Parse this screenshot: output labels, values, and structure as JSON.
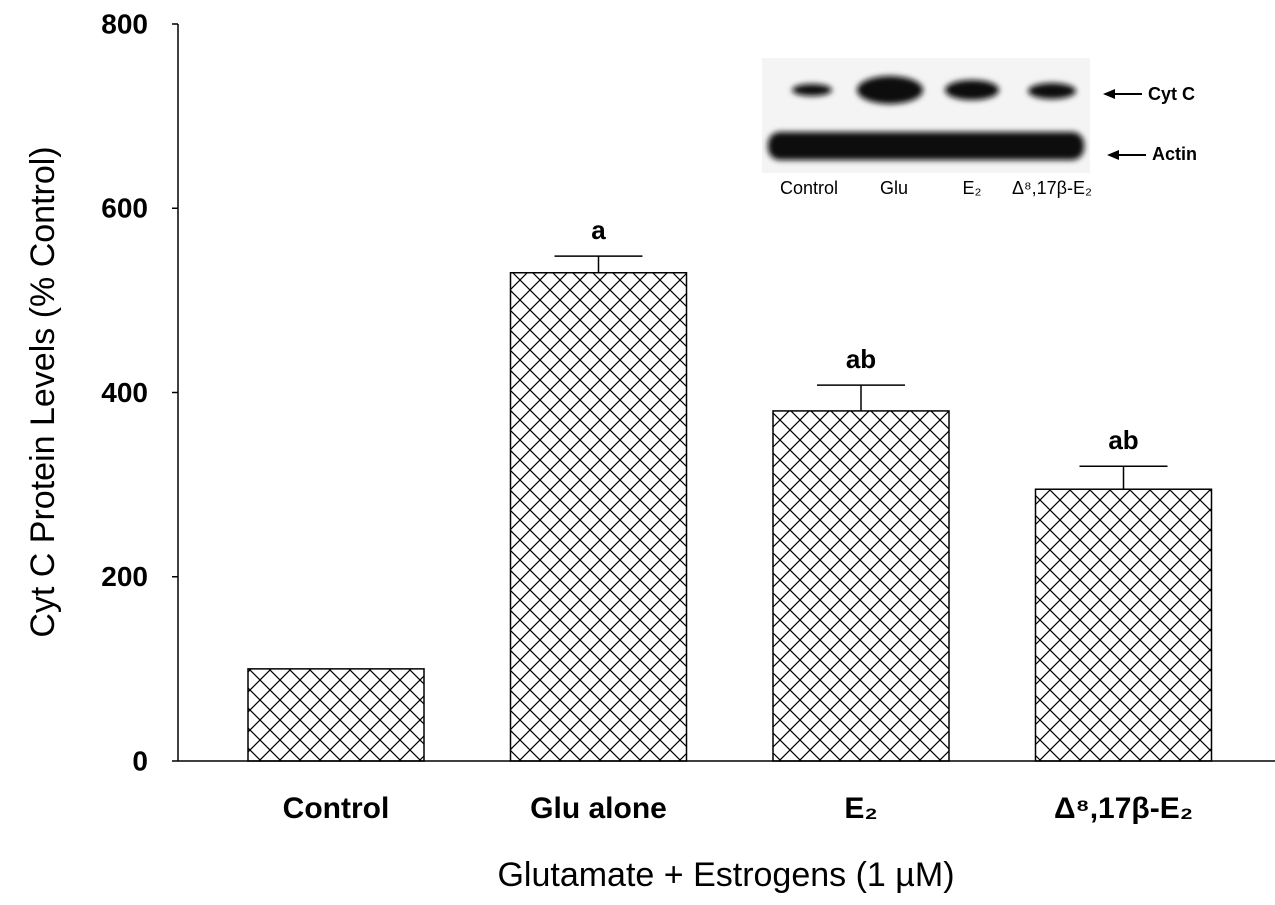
{
  "chart_data": {
    "type": "bar",
    "y_label": "Cyt C Protein Levels (% Control)",
    "x_label": "Glutamate + Estrogens (1 µM)",
    "categories": [
      "Control",
      "Glu alone",
      "E₂",
      "Δ⁸,17β-E₂"
    ],
    "values": [
      100,
      530,
      380,
      295
    ],
    "errors": [
      null,
      18,
      28,
      25
    ],
    "letters": [
      null,
      "a",
      "ab",
      "ab"
    ],
    "color": "#000000",
    "hatch": "crosshatch",
    "ylim": [
      0,
      800
    ],
    "yticks": [
      0,
      200,
      400,
      600,
      800
    ],
    "grid": false,
    "inset": {
      "lanes": [
        "Control",
        "Glu",
        "E₂",
        "Δ⁸,17β-E₂"
      ],
      "bands": [
        "Cyt C",
        "Actin"
      ]
    }
  }
}
